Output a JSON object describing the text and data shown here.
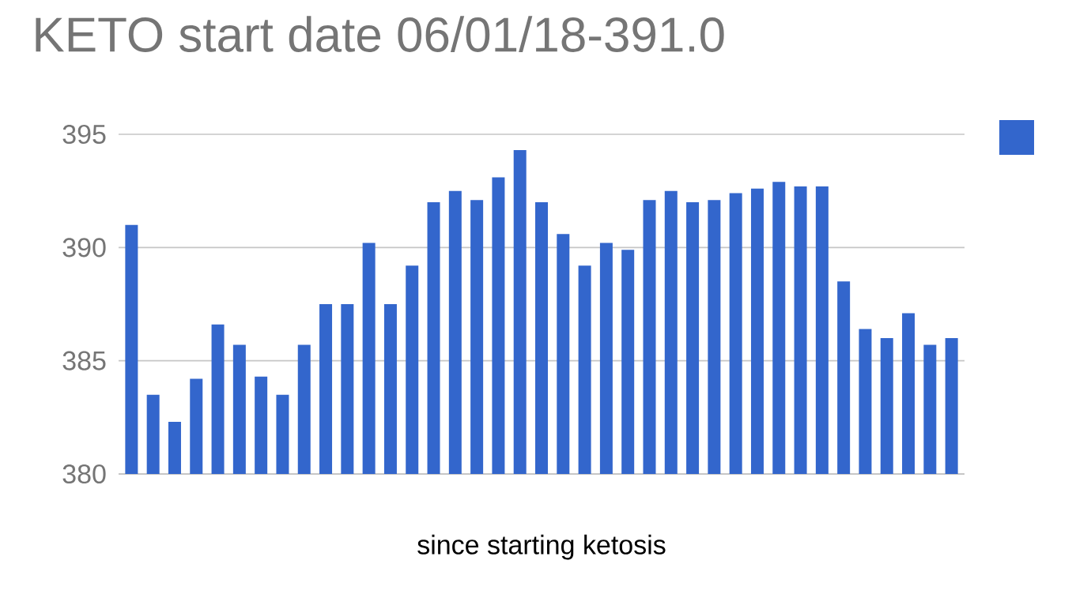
{
  "chart_data": {
    "type": "bar",
    "title": "KETO start date 06/01/18-391.0",
    "xlabel": "since starting ketosis",
    "categories": [
      null,
      null,
      null,
      null,
      null,
      null,
      null,
      null,
      null,
      null,
      null,
      null,
      null,
      null,
      null,
      null,
      null,
      null,
      null,
      null,
      null,
      null,
      null,
      null,
      null,
      null,
      null,
      null,
      null,
      null,
      null,
      null,
      null,
      null,
      null,
      null,
      null,
      null,
      null
    ],
    "values": [
      391.0,
      383.5,
      382.3,
      384.2,
      386.6,
      385.7,
      384.3,
      383.5,
      385.7,
      387.5,
      387.5,
      390.2,
      387.5,
      389.2,
      392.0,
      392.5,
      392.1,
      393.1,
      394.3,
      392.0,
      390.6,
      389.2,
      390.2,
      389.9,
      392.1,
      392.5,
      392.0,
      392.1,
      392.4,
      392.6,
      392.9,
      392.7,
      392.7,
      388.5,
      386.4,
      386.0,
      387.1,
      385.7,
      386.0
    ],
    "color": "#3366cc",
    "ylim": [
      380,
      395
    ],
    "yticks": [
      380,
      385,
      390,
      395
    ],
    "grid": "y"
  }
}
